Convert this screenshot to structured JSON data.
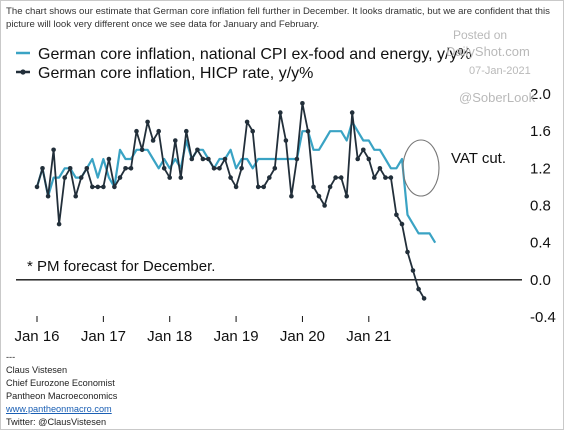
{
  "intro_text": "The chart shows our estimate that German core inflation fell further in December. It looks dramatic, but we are confident that this picture will look very different once we see data for January and February.",
  "watermark": {
    "posted_on": "Posted on",
    "brand": "DailyShot.com",
    "date": "07-Jan-2021",
    "handle": "@SoberLook"
  },
  "footer": {
    "separator": "---",
    "name": "Claus Vistesen",
    "title": "Chief Eurozone Economist",
    "company": "Pantheon Macroeconomics",
    "website": "www.pantheonmacro.com",
    "twitter": "Twitter: @ClausVistesen"
  },
  "chart_data": {
    "type": "line",
    "title": "",
    "xlabel": "",
    "ylabel": "",
    "x_tick_labels": [
      "Jan 16",
      "Jan 17",
      "Jan 18",
      "Jan 19",
      "Jan 20",
      "Jan 21"
    ],
    "y_tick_labels": [
      "2.0",
      "1.6",
      "1.2",
      "0.8",
      "0.4",
      "0.0",
      "-0.4"
    ],
    "y_ticks": [
      2.0,
      1.6,
      1.2,
      0.8,
      0.4,
      0.0,
      -0.4
    ],
    "ylim": [
      -0.4,
      2.0
    ],
    "x_start_month": "Jan 2016",
    "zero_line": true,
    "grid": false,
    "legend_position": "top-left",
    "annotations": {
      "vat": "VAT cut.",
      "forecast": "* PM forecast for December."
    },
    "colors": {
      "national": "#3aa3c4",
      "hicp": "#222f3a",
      "zero_line": "#111111"
    },
    "series": [
      {
        "name": "German core inflation, national CPI ex-food and energy, y/y%",
        "legend_label": "German core inflation, national CPI ex-food and energy, y/y%",
        "style": "line",
        "values": [
          1.0,
          1.2,
          0.9,
          1.1,
          1.1,
          1.2,
          1.2,
          1.1,
          1.1,
          1.2,
          1.3,
          1.1,
          1.3,
          1.1,
          1.0,
          1.4,
          1.3,
          1.3,
          1.4,
          1.4,
          1.4,
          1.3,
          1.2,
          1.3,
          1.2,
          1.3,
          1.2,
          1.5,
          1.3,
          1.4,
          1.4,
          1.3,
          1.2,
          1.3,
          1.3,
          1.4,
          1.2,
          1.3,
          1.3,
          1.2,
          1.3,
          1.3,
          1.3,
          1.3,
          1.3,
          1.3,
          1.3,
          1.3,
          1.6,
          1.6,
          1.4,
          1.4,
          1.5,
          1.6,
          1.6,
          1.6,
          1.5,
          1.7,
          1.6,
          1.5,
          1.5,
          1.4,
          1.4,
          1.3,
          1.2,
          1.2,
          1.3,
          0.7,
          0.6,
          0.5,
          0.5,
          0.5,
          0.4
        ]
      },
      {
        "name": "German core inflation, HICP rate, y/y%",
        "legend_label": "German core inflation, HICP rate, y/y%",
        "style": "line-markers",
        "values": [
          1.0,
          1.2,
          0.9,
          1.4,
          0.6,
          1.1,
          1.2,
          0.9,
          1.1,
          1.2,
          1.0,
          1.0,
          1.0,
          1.3,
          1.0,
          1.1,
          1.2,
          1.2,
          1.6,
          1.4,
          1.7,
          1.5,
          1.6,
          1.2,
          1.1,
          1.5,
          1.1,
          1.6,
          1.3,
          1.4,
          1.3,
          1.3,
          1.2,
          1.2,
          1.3,
          1.1,
          1.0,
          1.2,
          1.7,
          1.6,
          1.0,
          1.0,
          1.1,
          1.2,
          1.8,
          1.5,
          0.9,
          1.3,
          1.9,
          1.6,
          1.0,
          0.9,
          0.8,
          1.0,
          1.1,
          1.1,
          0.9,
          1.8,
          1.3,
          1.4,
          1.3,
          1.1,
          1.2,
          1.1,
          1.1,
          0.7,
          0.6,
          0.3,
          0.1,
          -0.1,
          -0.2
        ]
      }
    ]
  }
}
